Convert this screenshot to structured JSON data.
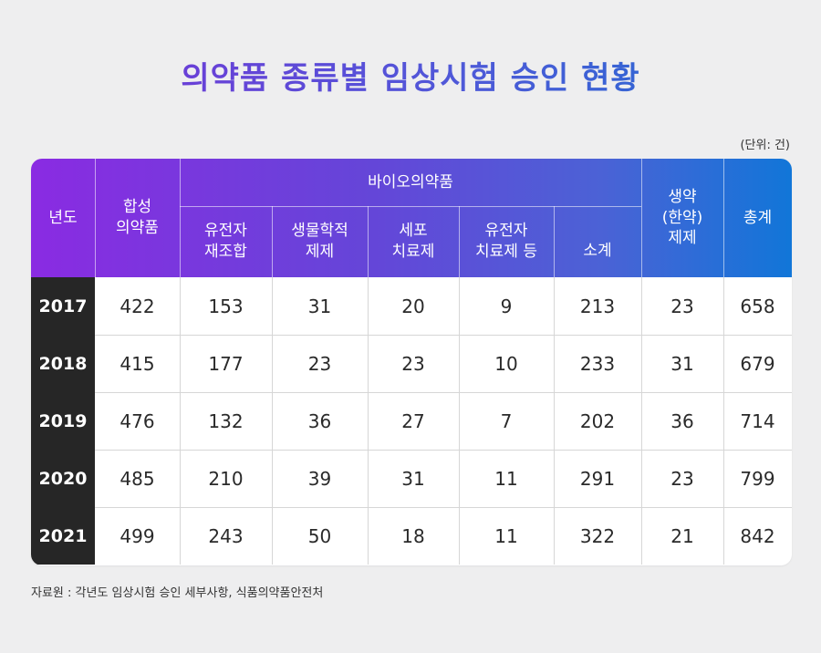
{
  "title": "의약품 종류별 임상시험 승인 현황",
  "unit": "(단위: 건)",
  "source": "자료원 : 각년도 임상시험 승인 세부사항, 식품의약품안전처",
  "colors": {
    "header_start": "#8a2be2",
    "header_end": "#1176d8",
    "year_bg": "#262626",
    "page_bg": "#eeeeef"
  },
  "chart_data": {
    "type": "table",
    "headers": {
      "year": "년도",
      "synthetic": "합성\n의약품",
      "bio_group": "바이오의약품",
      "bio_sub": [
        "유전자\n재조합",
        "생물학적\n제제",
        "세포\n치료제",
        "유전자\n치료제 등",
        "소계"
      ],
      "herbal": "생약\n(한약)\n제제",
      "total": "총계"
    },
    "rows": [
      {
        "year": "2017",
        "values": [
          "422",
          "153",
          "31",
          "20",
          "9",
          "213",
          "23",
          "658"
        ]
      },
      {
        "year": "2018",
        "values": [
          "415",
          "177",
          "23",
          "23",
          "10",
          "233",
          "31",
          "679"
        ]
      },
      {
        "year": "2019",
        "values": [
          "476",
          "132",
          "36",
          "27",
          "7",
          "202",
          "36",
          "714"
        ]
      },
      {
        "year": "2020",
        "values": [
          "485",
          "210",
          "39",
          "31",
          "11",
          "291",
          "23",
          "799"
        ]
      },
      {
        "year": "2021",
        "values": [
          "499",
          "243",
          "50",
          "18",
          "11",
          "322",
          "21",
          "842"
        ]
      }
    ]
  }
}
